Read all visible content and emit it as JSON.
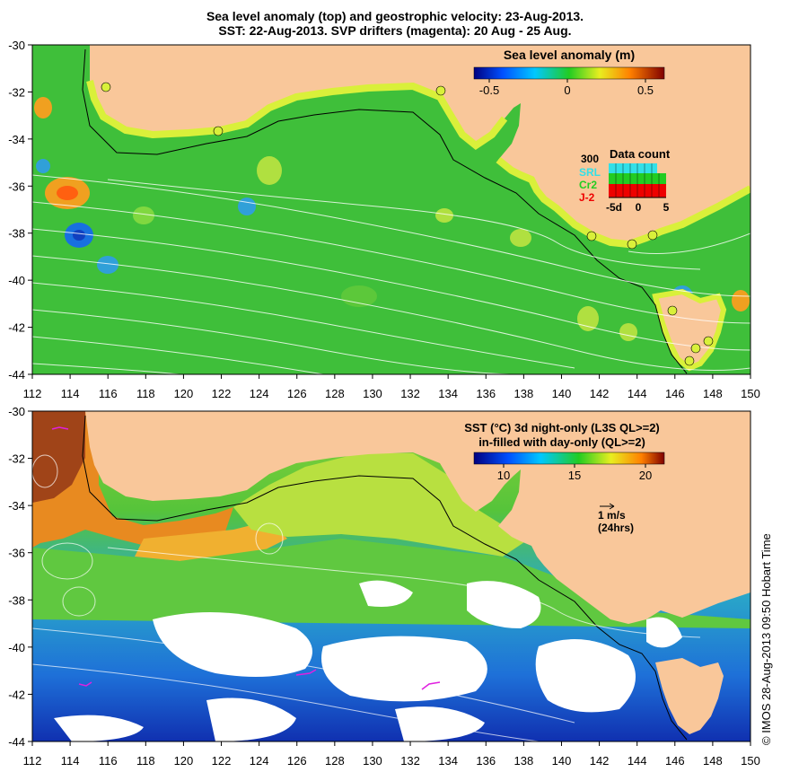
{
  "header": {
    "title_line1": "Sea level anomaly (top) and geostrophic velocity: 23-Aug-2013.",
    "title_line2": "SST: 22-Aug-2013. SVP drifters (magenta): 20 Aug - 25 Aug."
  },
  "axes": {
    "x_ticks": [
      "112",
      "114",
      "116",
      "118",
      "120",
      "122",
      "124",
      "126",
      "128",
      "130",
      "132",
      "134",
      "136",
      "138",
      "140",
      "142",
      "144",
      "146",
      "148",
      "150"
    ],
    "y_ticks": [
      "-30",
      "-32",
      "-34",
      "-36",
      "-38",
      "-40",
      "-42",
      "-44"
    ]
  },
  "top_panel": {
    "colorbar_title": "Sea level anomaly (m)",
    "colorbar_ticks": [
      "-0.5",
      "0",
      "0.5"
    ],
    "inset": {
      "title": "Data count",
      "max_label": "300",
      "series": [
        {
          "name": "SRL",
          "color": "#33e0e8"
        },
        {
          "name": "Cr2",
          "color": "#22cc22"
        },
        {
          "name": "J-2",
          "color": "#ee0000"
        }
      ],
      "x_labels": [
        "-5d",
        "0",
        "5"
      ]
    }
  },
  "bottom_panel": {
    "colorbar_title_line1": "SST (°C) 3d night-only (L3S QL>=2)",
    "colorbar_title_line2": "in-filled with day-only (QL>=2)",
    "colorbar_ticks": [
      "10",
      "15",
      "20"
    ],
    "vector_label": "1 m/s",
    "vector_sublabel": "(24hrs)"
  },
  "footer": {
    "copyright": "© IMOS 28-Aug-2013 09:50 Hobart Time"
  },
  "colors": {
    "land": "#f9c79a",
    "slope_green": "#2fc22f",
    "shelf_yellow": "#d9f03a",
    "missing_white": "#ffffff"
  }
}
